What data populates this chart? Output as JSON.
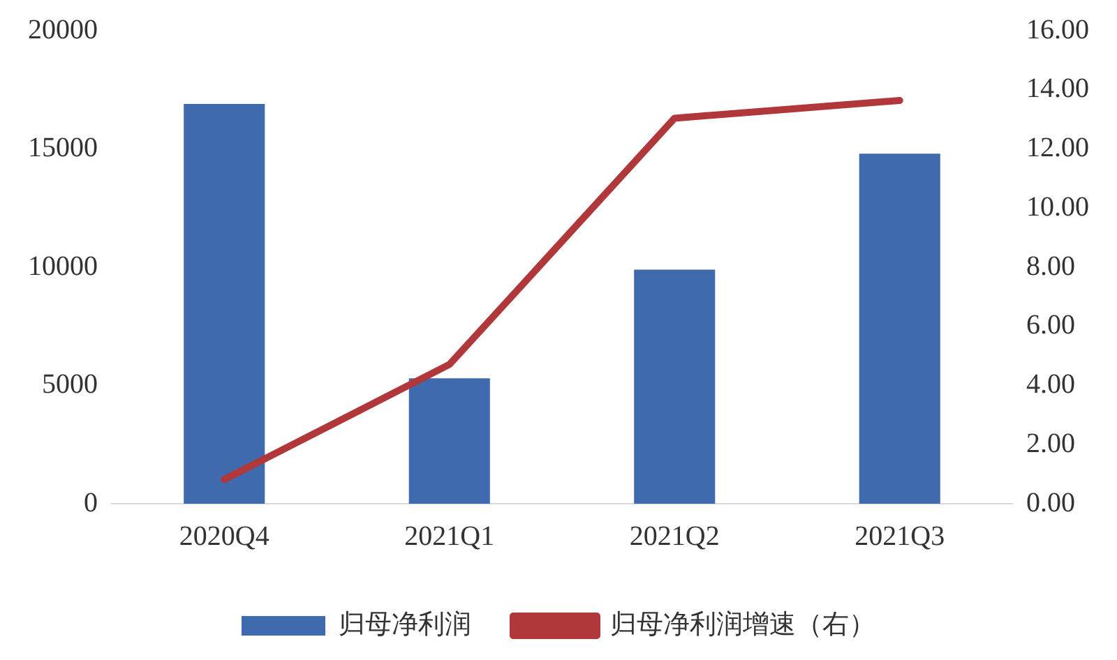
{
  "chart_data": {
    "type": "bar",
    "categories": [
      "2020Q4",
      "2021Q1",
      "2021Q2",
      "2021Q3"
    ],
    "series": [
      {
        "name": "归母净利润",
        "color": "#3f6aad",
        "values": [
          16900,
          5300,
          9900,
          14800
        ]
      },
      {
        "name": "归母净利润增速（右）",
        "type": "line",
        "axis": "y2",
        "color": "#b0373a",
        "values": [
          0.82,
          4.71,
          13.04,
          13.64
        ]
      }
    ],
    "ylim": [
      0,
      20000
    ],
    "yticks": [
      0,
      5000,
      10000,
      15000,
      20000
    ],
    "y2lim": [
      0,
      16
    ],
    "y2ticks": [
      {
        "value": 0,
        "label": "0.00"
      },
      {
        "value": 2,
        "label": "2.00"
      },
      {
        "value": 4,
        "label": "4.00"
      },
      {
        "value": 6,
        "label": "6.00"
      },
      {
        "value": 8,
        "label": "8.00"
      },
      {
        "value": 10,
        "label": "10.00"
      },
      {
        "value": 12,
        "label": "12.00"
      },
      {
        "value": 14,
        "label": "14.00"
      },
      {
        "value": 16,
        "label": "16.00"
      }
    ],
    "grid": false,
    "legend": "bottom",
    "marker": "none",
    "line_style": "solid"
  }
}
